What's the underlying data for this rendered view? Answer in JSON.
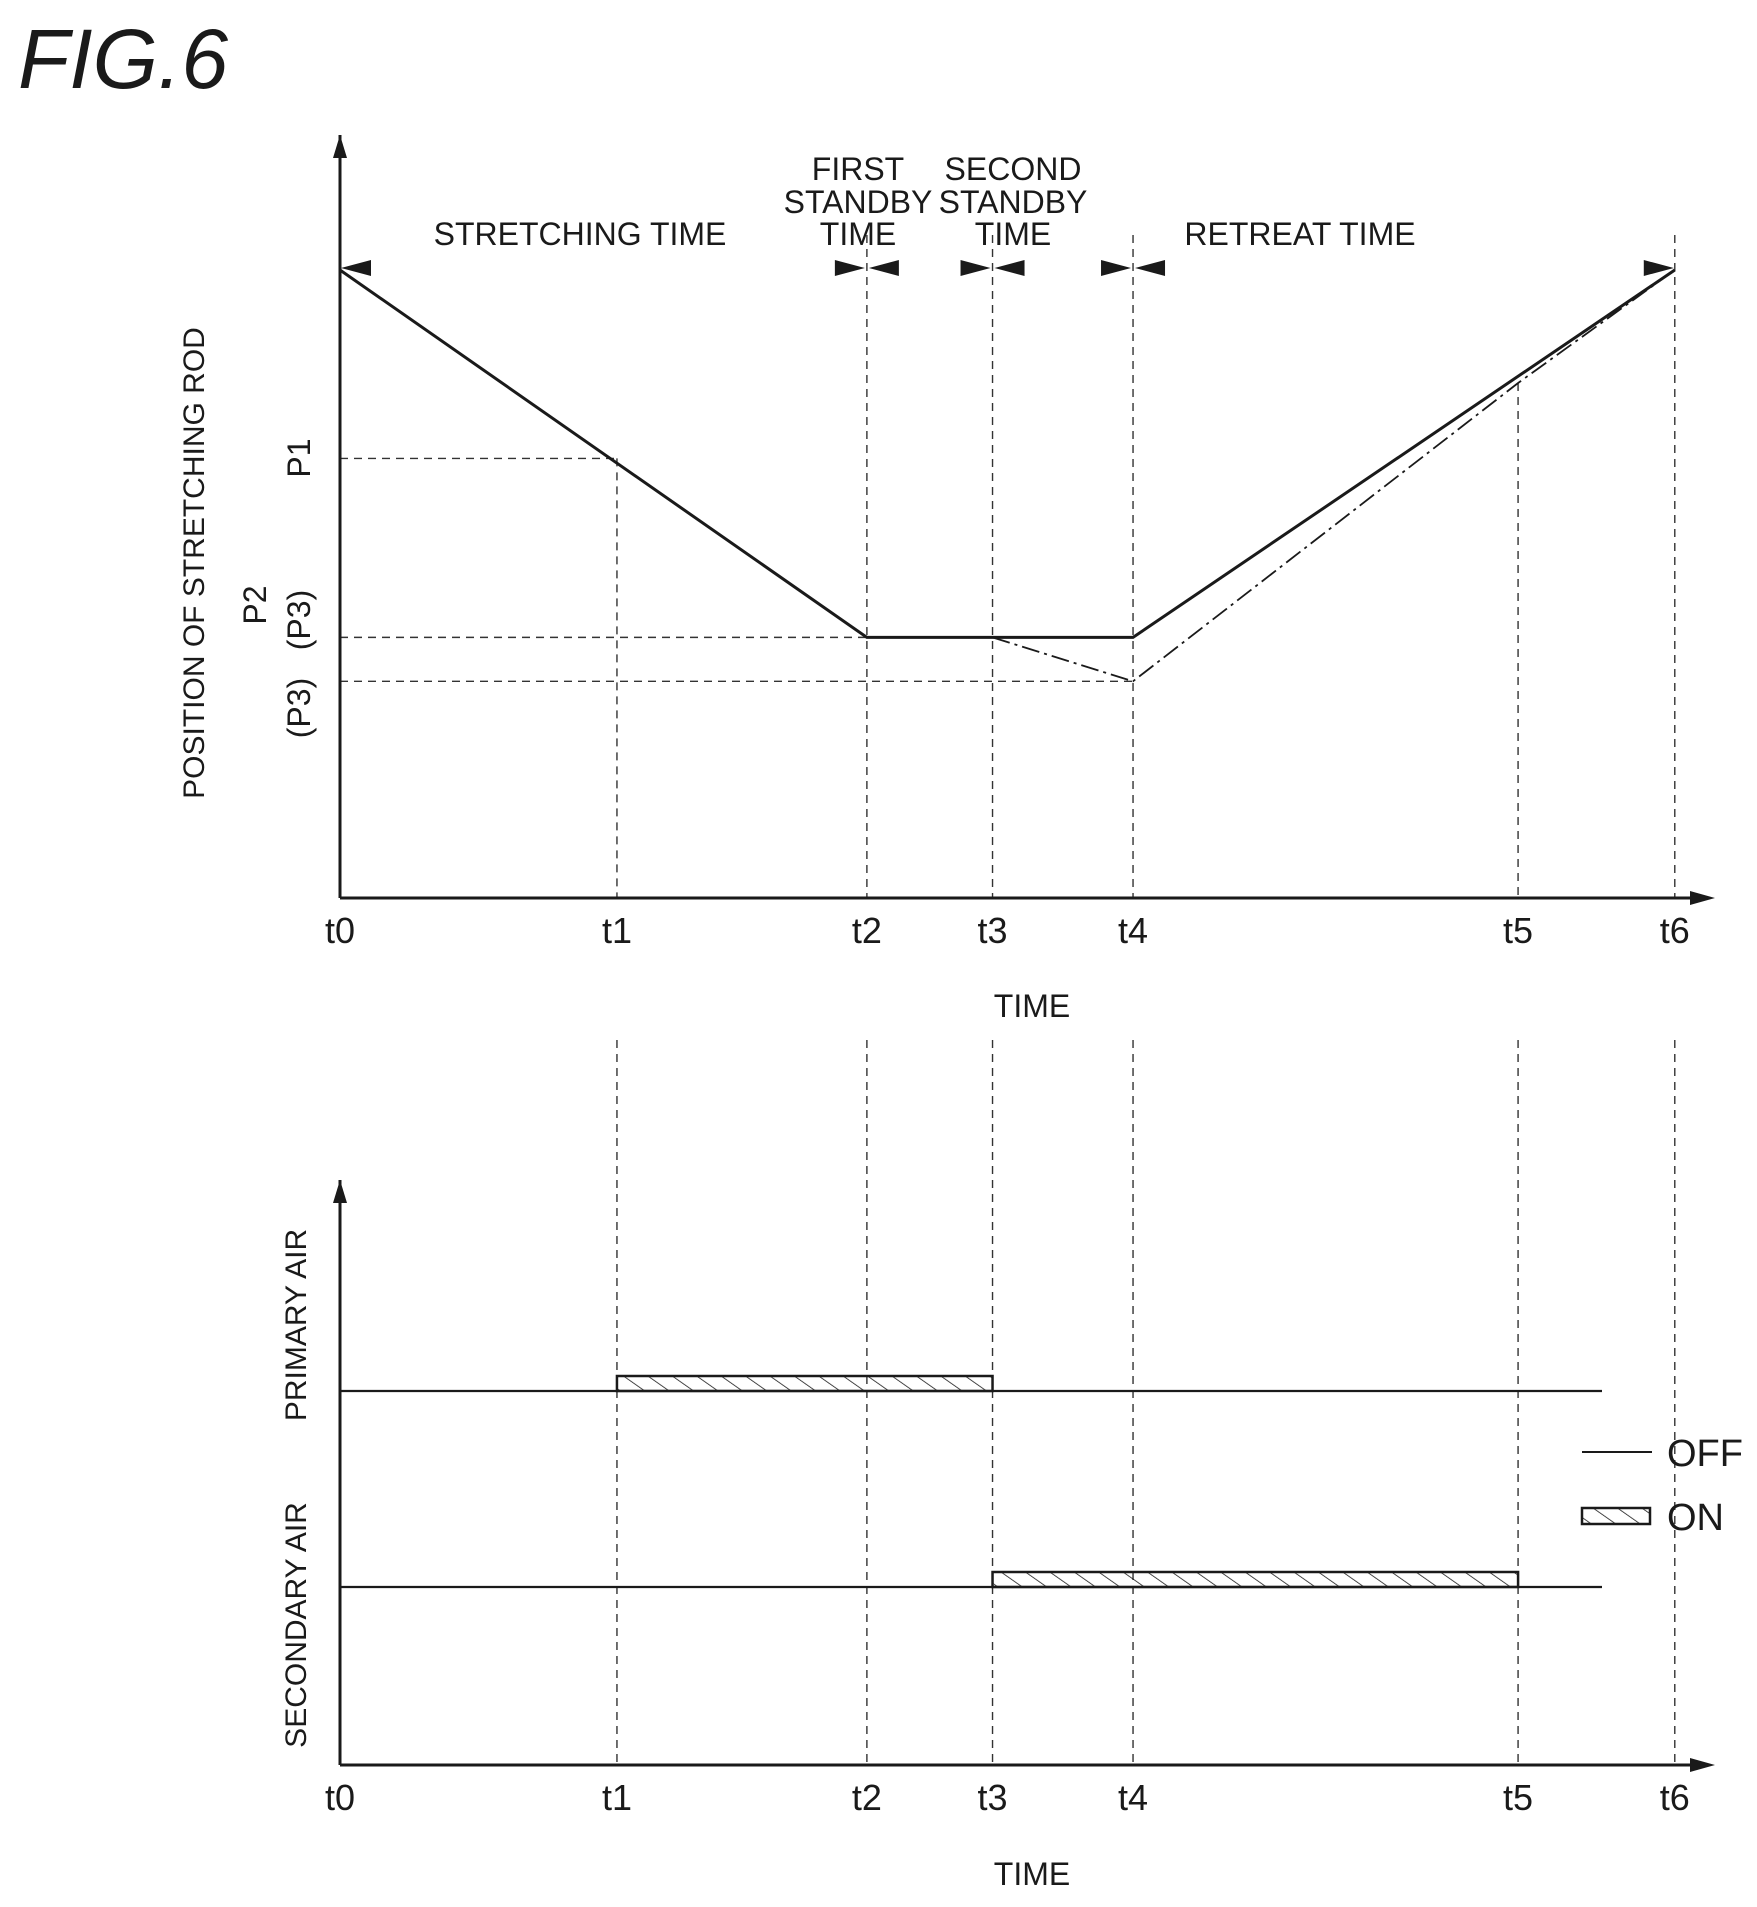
{
  "figure": {
    "title": "FIG.6"
  },
  "top_chart": {
    "ylabel": "POSITION OF STRETCHING ROD",
    "xlabel": "TIME",
    "y_levels": [
      {
        "key": "top",
        "label": "",
        "value": 0.0
      },
      {
        "key": "P1",
        "label": "P1",
        "value": 0.3
      },
      {
        "key": "P2",
        "label": "P2",
        "value": 0.585
      },
      {
        "key": "P3",
        "label": "(P3)",
        "value": 0.655
      }
    ],
    "p3_alt_label": "(P3)",
    "time_marks": [
      "t0",
      "t1",
      "t2",
      "t3",
      "t4",
      "t5",
      "t6"
    ],
    "time_values": {
      "t0": 0,
      "t1": 0.205,
      "t2": 0.39,
      "t3": 0.483,
      "t4": 0.587,
      "t5": 0.872,
      "t6": 0.988
    },
    "intervals": [
      {
        "name": "stretching",
        "lines": [
          "STRETCHING TIME"
        ],
        "from": "t0",
        "to": "t2"
      },
      {
        "name": "first-standby",
        "lines": [
          "FIRST",
          "STANDBY",
          "TIME"
        ],
        "from": "t2",
        "to": "t3"
      },
      {
        "name": "second-standby",
        "lines": [
          "SECOND",
          "STANDBY",
          "TIME"
        ],
        "from": "t3",
        "to": "t4"
      },
      {
        "name": "retreat",
        "lines": [
          "RETREAT TIME"
        ],
        "from": "t4",
        "to": "t6"
      }
    ],
    "series": [
      {
        "style": "solid",
        "points": [
          [
            "t0",
            0.0
          ],
          [
            "t2",
            0.585
          ],
          [
            "t4",
            0.585
          ],
          [
            "t6",
            0.0
          ]
        ]
      },
      {
        "style": "dash-dot",
        "points": [
          [
            "t3",
            0.585
          ],
          [
            "t4",
            0.655
          ],
          [
            "t5",
            0.18
          ],
          [
            "t6",
            0.0
          ]
        ]
      }
    ]
  },
  "bottom_chart": {
    "xlabel": "TIME",
    "time_marks": [
      "t0",
      "t1",
      "t2",
      "t3",
      "t4",
      "t5",
      "t6"
    ],
    "signals": [
      {
        "name": "primary-air",
        "label": "PRIMARY AIR",
        "on_from": "t1",
        "on_to": "t3"
      },
      {
        "name": "secondary-air",
        "label": "SECONDARY AIR",
        "on_from": "t3",
        "on_to": "t5"
      }
    ]
  },
  "legend": {
    "off_label": "OFF",
    "on_label": "ON"
  }
}
